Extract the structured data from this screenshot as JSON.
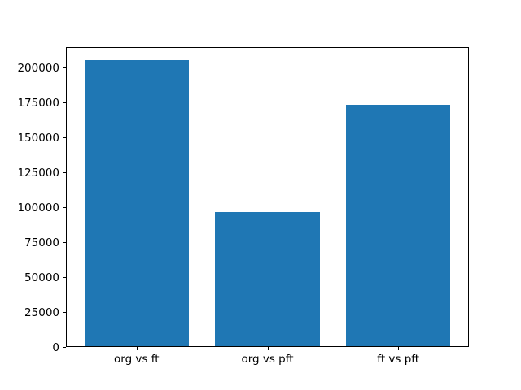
{
  "figure": {
    "background_color": "#ffffff",
    "bar_color": "#1f77b4",
    "axis_color": "#000000",
    "tick_label_color": "#000000"
  },
  "chart_data": {
    "type": "bar",
    "categories": [
      "org vs ft",
      "org vs pft",
      "ft vs pft"
    ],
    "values": [
      205000,
      96000,
      173000
    ],
    "title": "",
    "xlabel": "",
    "ylabel": "",
    "ylim": [
      0,
      214800
    ],
    "xlim": [
      -0.54,
      2.54
    ],
    "bar_width": 0.8,
    "yticks": [
      0,
      25000,
      50000,
      75000,
      100000,
      125000,
      150000,
      175000,
      200000
    ],
    "grid": false,
    "legend": false
  }
}
